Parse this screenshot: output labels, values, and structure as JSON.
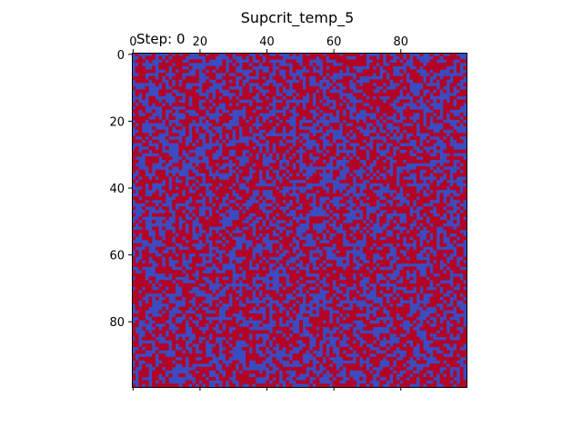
{
  "chart_data": {
    "type": "heatmap",
    "title": "Supcrit_temp_5",
    "annotation": "Step: 0",
    "grid_size": [
      100,
      100
    ],
    "x_ticks": [
      "0",
      "20",
      "40",
      "60",
      "80"
    ],
    "x_tick_values": [
      0,
      20,
      40,
      60,
      80
    ],
    "y_ticks": [
      "0",
      "20",
      "40",
      "60",
      "80"
    ],
    "y_tick_values": [
      0,
      20,
      40,
      60,
      80
    ],
    "x_axis_position": "top",
    "value_states": [
      -1,
      1
    ],
    "state_fraction_approx": 0.5,
    "colors": {
      "low": "#3b4cc0",
      "high": "#b40426"
    },
    "colormap": "coolwarm",
    "grid": false,
    "legend": "none"
  }
}
